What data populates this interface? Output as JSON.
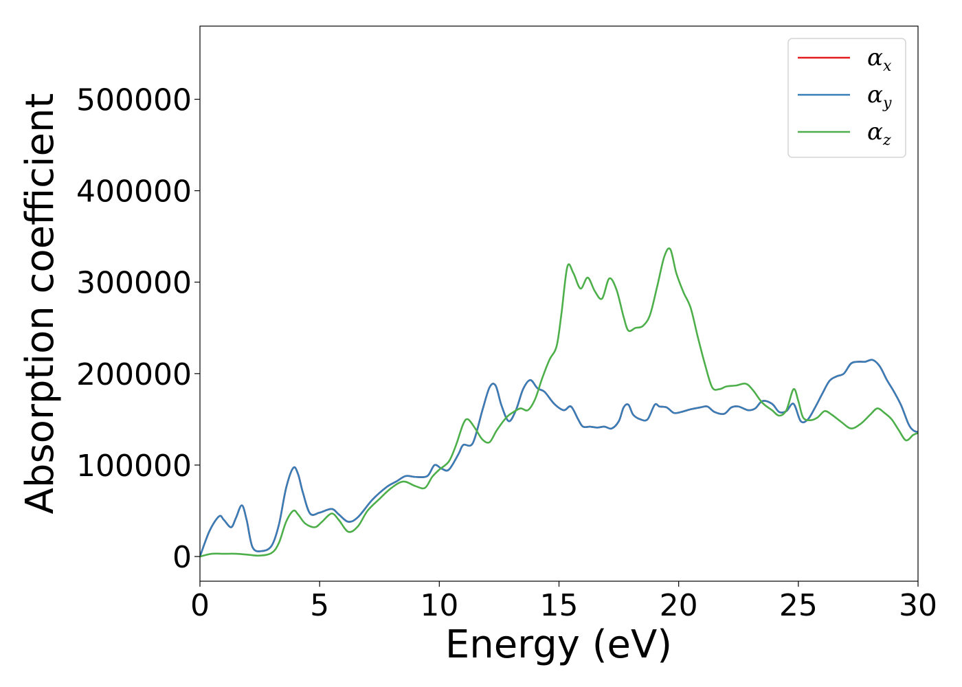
{
  "chart_data": {
    "type": "line",
    "title": "",
    "xlabel": "Energy (eV)",
    "ylabel": "Absorption coefficient",
    "xlim": [
      0,
      30
    ],
    "ylim": [
      -27000,
      580000
    ],
    "xticks": [
      0,
      5,
      10,
      15,
      20,
      25,
      30
    ],
    "yticks": [
      0,
      100000,
      200000,
      300000,
      400000,
      500000
    ],
    "grid": false,
    "legend_position": "top-right",
    "series": [
      {
        "name": "α_x",
        "symbol": "α",
        "subscript": "x",
        "color": "#e41a1c",
        "values_same_as": "α_y",
        "x": [
          0,
          0.4,
          0.8,
          1.0,
          1.3,
          1.5,
          1.75,
          1.95,
          2.2,
          2.6,
          3.0,
          3.3,
          3.6,
          3.9,
          4.1,
          4.3,
          4.6,
          5.0,
          5.5,
          5.8,
          6.2,
          6.6,
          7.2,
          7.8,
          8.2,
          8.6,
          9.0,
          9.5,
          9.8,
          10.1,
          10.4,
          10.8,
          11.0,
          11.4,
          11.8,
          12.1,
          12.35,
          12.6,
          12.9,
          13.2,
          13.5,
          13.8,
          14.1,
          14.4,
          14.8,
          15.2,
          15.5,
          15.8,
          16.0,
          16.3,
          16.6,
          16.9,
          17.2,
          17.5,
          17.7,
          17.9,
          18.1,
          18.4,
          18.7,
          19.0,
          19.2,
          19.5,
          19.8,
          20.1,
          20.5,
          20.9,
          21.2,
          21.5,
          21.9,
          22.2,
          22.5,
          22.9,
          23.2,
          23.5,
          23.9,
          24.2,
          24.5,
          24.8,
          25.1,
          25.4,
          25.7,
          26.0,
          26.3,
          26.6,
          26.9,
          27.2,
          27.5,
          27.8,
          28.1,
          28.4,
          28.7,
          29.0,
          29.3,
          29.6,
          29.8,
          30.0
        ],
        "y": [
          0,
          28000,
          44000,
          40000,
          32000,
          42000,
          56000,
          40000,
          10000,
          6000,
          12000,
          35000,
          75000,
          97000,
          90000,
          70000,
          47000,
          48000,
          52000,
          46000,
          38000,
          43000,
          62000,
          76000,
          82000,
          88000,
          87000,
          88000,
          100000,
          96000,
          95000,
          112000,
          122000,
          124000,
          160000,
          185000,
          187000,
          165000,
          148000,
          160000,
          183000,
          193000,
          184000,
          180000,
          167000,
          160000,
          164000,
          150000,
          142000,
          142000,
          141000,
          142000,
          140000,
          148000,
          163000,
          166000,
          155000,
          150000,
          150000,
          166000,
          164000,
          163000,
          157000,
          158000,
          161000,
          163000,
          164000,
          158000,
          156000,
          163000,
          164000,
          160000,
          162000,
          170000,
          167000,
          158000,
          159000,
          167000,
          148000,
          150000,
          163000,
          178000,
          192000,
          197000,
          200000,
          211000,
          213000,
          213000,
          215000,
          208000,
          193000,
          180000,
          165000,
          145000,
          138000,
          136000
        ]
      },
      {
        "name": "α_y",
        "symbol": "α",
        "subscript": "y",
        "color": "#377eb8",
        "x": [
          0,
          0.4,
          0.8,
          1.0,
          1.3,
          1.5,
          1.75,
          1.95,
          2.2,
          2.6,
          3.0,
          3.3,
          3.6,
          3.9,
          4.1,
          4.3,
          4.6,
          5.0,
          5.5,
          5.8,
          6.2,
          6.6,
          7.2,
          7.8,
          8.2,
          8.6,
          9.0,
          9.5,
          9.8,
          10.1,
          10.4,
          10.8,
          11.0,
          11.4,
          11.8,
          12.1,
          12.35,
          12.6,
          12.9,
          13.2,
          13.5,
          13.8,
          14.1,
          14.4,
          14.8,
          15.2,
          15.5,
          15.8,
          16.0,
          16.3,
          16.6,
          16.9,
          17.2,
          17.5,
          17.7,
          17.9,
          18.1,
          18.4,
          18.7,
          19.0,
          19.2,
          19.5,
          19.8,
          20.1,
          20.5,
          20.9,
          21.2,
          21.5,
          21.9,
          22.2,
          22.5,
          22.9,
          23.2,
          23.5,
          23.9,
          24.2,
          24.5,
          24.8,
          25.1,
          25.4,
          25.7,
          26.0,
          26.3,
          26.6,
          26.9,
          27.2,
          27.5,
          27.8,
          28.1,
          28.4,
          28.7,
          29.0,
          29.3,
          29.6,
          29.8,
          30.0
        ],
        "y": [
          0,
          28000,
          44000,
          40000,
          32000,
          42000,
          56000,
          40000,
          10000,
          6000,
          12000,
          35000,
          75000,
          97000,
          90000,
          70000,
          47000,
          48000,
          52000,
          46000,
          38000,
          43000,
          62000,
          76000,
          82000,
          88000,
          87000,
          88000,
          100000,
          96000,
          95000,
          112000,
          122000,
          124000,
          160000,
          185000,
          187000,
          165000,
          148000,
          160000,
          183000,
          193000,
          184000,
          180000,
          167000,
          160000,
          164000,
          150000,
          142000,
          142000,
          141000,
          142000,
          140000,
          148000,
          163000,
          166000,
          155000,
          150000,
          150000,
          166000,
          164000,
          163000,
          157000,
          158000,
          161000,
          163000,
          164000,
          158000,
          156000,
          163000,
          164000,
          160000,
          162000,
          170000,
          167000,
          158000,
          159000,
          167000,
          148000,
          150000,
          163000,
          178000,
          192000,
          197000,
          200000,
          211000,
          213000,
          213000,
          215000,
          208000,
          193000,
          180000,
          165000,
          145000,
          138000,
          136000
        ]
      },
      {
        "name": "α_z",
        "symbol": "α",
        "subscript": "z",
        "color": "#4daf4a",
        "x": [
          0,
          0.5,
          1.0,
          1.5,
          2.0,
          2.5,
          3.0,
          3.3,
          3.6,
          3.9,
          4.1,
          4.4,
          4.8,
          5.1,
          5.5,
          5.8,
          6.2,
          6.6,
          7.0,
          7.5,
          8.0,
          8.5,
          9.0,
          9.4,
          9.7,
          10.0,
          10.4,
          10.7,
          11.0,
          11.2,
          11.5,
          11.8,
          12.1,
          12.4,
          12.8,
          13.1,
          13.4,
          13.7,
          14.0,
          14.3,
          14.6,
          14.9,
          15.1,
          15.35,
          15.6,
          15.9,
          16.2,
          16.5,
          16.8,
          17.1,
          17.4,
          17.7,
          17.9,
          18.2,
          18.5,
          18.8,
          19.1,
          19.4,
          19.65,
          19.9,
          20.2,
          20.5,
          20.8,
          21.1,
          21.4,
          21.7,
          22.0,
          22.4,
          22.8,
          23.1,
          23.5,
          23.9,
          24.2,
          24.5,
          24.8,
          25.0,
          25.2,
          25.5,
          25.8,
          26.1,
          26.4,
          26.8,
          27.2,
          27.6,
          28.0,
          28.3,
          28.6,
          28.9,
          29.2,
          29.5,
          29.8,
          30.0
        ],
        "y": [
          0,
          3000,
          3000,
          3000,
          2000,
          1000,
          4000,
          15000,
          38000,
          50000,
          46000,
          36000,
          32000,
          38000,
          47000,
          40000,
          27000,
          33000,
          50000,
          63000,
          75000,
          82000,
          77000,
          75000,
          87000,
          95000,
          104000,
          122000,
          145000,
          150000,
          140000,
          128000,
          125000,
          138000,
          152000,
          158000,
          162000,
          160000,
          172000,
          195000,
          215000,
          230000,
          265000,
          317000,
          310000,
          293000,
          305000,
          290000,
          282000,
          304000,
          292000,
          262000,
          247000,
          250000,
          252000,
          264000,
          295000,
          328000,
          336000,
          310000,
          289000,
          272000,
          240000,
          210000,
          185000,
          183000,
          186000,
          187000,
          189000,
          182000,
          168000,
          160000,
          154000,
          160000,
          183000,
          170000,
          152000,
          149000,
          152000,
          159000,
          155000,
          147000,
          140000,
          145000,
          155000,
          162000,
          157000,
          150000,
          138000,
          127000,
          133000,
          135000
        ]
      }
    ]
  }
}
